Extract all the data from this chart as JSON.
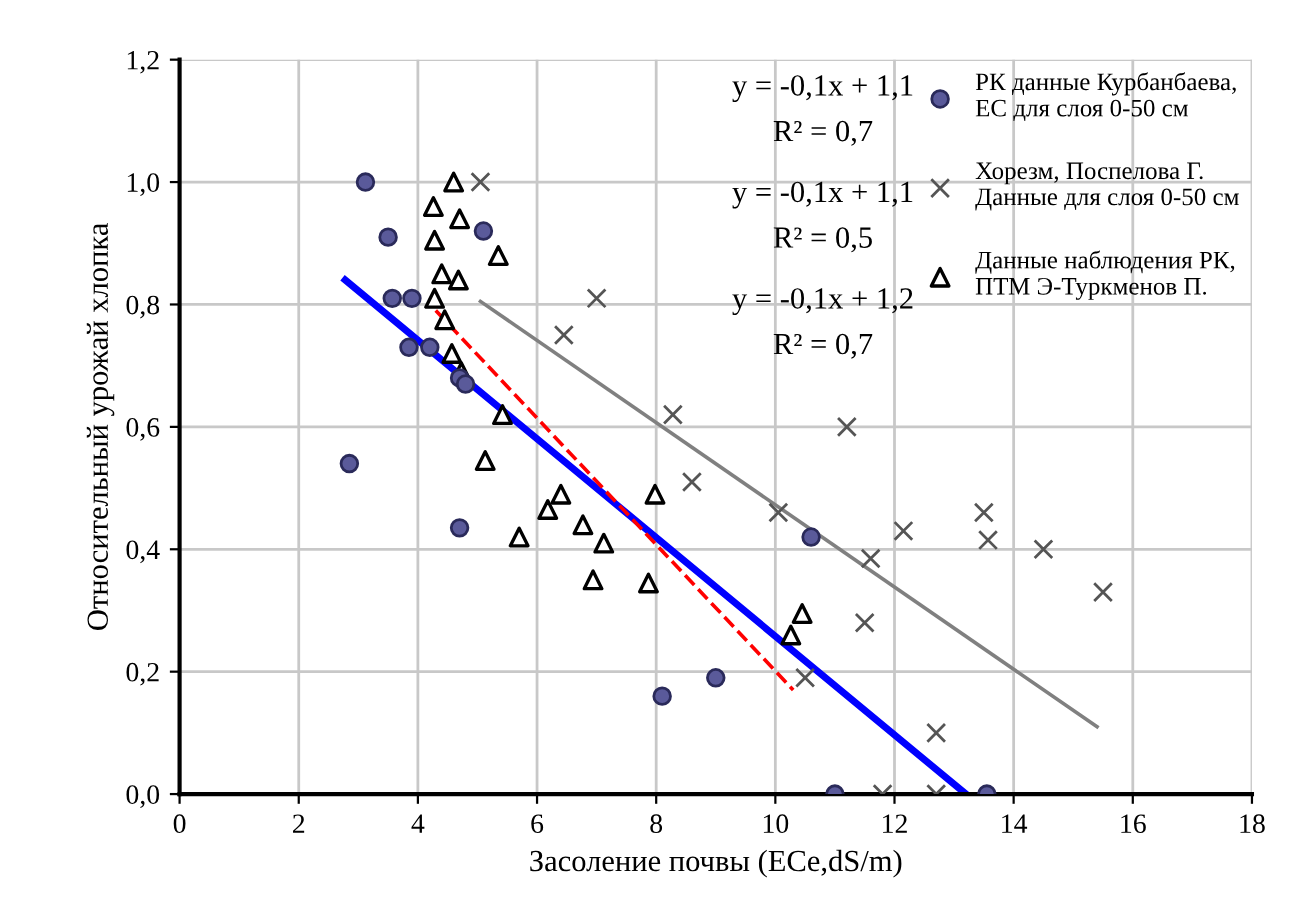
{
  "chart_data": {
    "type": "scatter",
    "xlabel": "Засоление почвы (ECe,dS/m)",
    "ylabel": "Относительный урожай хлопка",
    "xlim": [
      0,
      18
    ],
    "xticks": [
      0,
      2,
      4,
      6,
      8,
      10,
      12,
      14,
      16,
      18
    ],
    "ylim": [
      0,
      1.2
    ],
    "yticks": [
      {
        "value": 0,
        "label": "0,0"
      },
      {
        "value": 0.2,
        "label": "0,2"
      },
      {
        "value": 0.4,
        "label": "0,4"
      },
      {
        "value": 0.6,
        "label": "0,6"
      },
      {
        "value": 0.8,
        "label": "0,8"
      },
      {
        "value": 1.0,
        "label": "1,0"
      },
      {
        "value": 1.2,
        "label": "1,2"
      }
    ],
    "grid": true,
    "legend": "top right",
    "annotations": [
      "y = -0,1x + 1,1",
      "R² = 0,7",
      "y = -0,1x + 1,1",
      "R² = 0,5",
      "y = -0,1x + 1,2",
      "R² = 0,7"
    ],
    "series": [
      {
        "name": "РК данные Курбанбаева,\nЕС для слоя 0-50 см",
        "marker": "circle",
        "color": "#5a5a9a",
        "x": [
          3.12,
          3.5,
          5.1,
          3.57,
          3.9,
          3.85,
          4.2,
          4.7,
          4.8,
          2.85,
          4.7,
          8.1,
          9.0,
          10.6,
          11.0,
          13.55
        ],
        "values": [
          1.0,
          0.91,
          0.92,
          0.81,
          0.81,
          0.73,
          0.73,
          0.68,
          0.67,
          0.54,
          0.435,
          0.16,
          0.19,
          0.42,
          0.0,
          0.0
        ]
      },
      {
        "name": "Хорезм, Поспелова Г.\nДанные для слоя 0-50 см",
        "marker": "cross",
        "color": "#555555",
        "x": [
          5.05,
          7.0,
          6.45,
          8.28,
          8.6,
          11.2,
          10.05,
          12.15,
          13.5,
          13.57,
          14.5,
          11.6,
          15.5,
          11.5,
          10.5,
          12.7,
          11.8,
          12.7
        ],
        "values": [
          1.0,
          0.81,
          0.75,
          0.62,
          0.51,
          0.6,
          0.46,
          0.43,
          0.46,
          0.415,
          0.4,
          0.385,
          0.33,
          0.28,
          0.19,
          0.1,
          0.0,
          0.0
        ]
      },
      {
        "name": "Данные наблюдения РК,\nПТМ Э-Туркменов П.",
        "marker": "triangle",
        "color": "#000000",
        "x": [
          4.6,
          4.26,
          4.7,
          5.35,
          4.28,
          4.4,
          4.68,
          4.28,
          4.45,
          4.57,
          4.73,
          5.42,
          5.13,
          6.4,
          6.18,
          5.7,
          6.77,
          7.12,
          6.94,
          7.87,
          7.98,
          10.45,
          10.26
        ],
        "values": [
          1.0,
          0.96,
          0.94,
          0.88,
          0.905,
          0.85,
          0.84,
          0.81,
          0.775,
          0.72,
          0.69,
          0.62,
          0.545,
          0.49,
          0.465,
          0.42,
          0.44,
          0.41,
          0.35,
          0.345,
          0.49,
          0.295,
          0.26
        ]
      },
      {
        "type": "line",
        "line_style": "solid",
        "color": "#0000ff",
        "x": [
          2.78,
          13.2
        ],
        "values": [
          0.84,
          0.0
        ]
      },
      {
        "type": "line",
        "line_style": "dashed",
        "color": "#ff0000",
        "x": [
          4.3,
          10.3
        ],
        "values": [
          0.79,
          0.17
        ]
      },
      {
        "type": "line",
        "line_style": "solid",
        "color": "#808080",
        "x": [
          5.05,
          15.4
        ],
        "values": [
          0.805,
          0.11
        ]
      }
    ]
  }
}
